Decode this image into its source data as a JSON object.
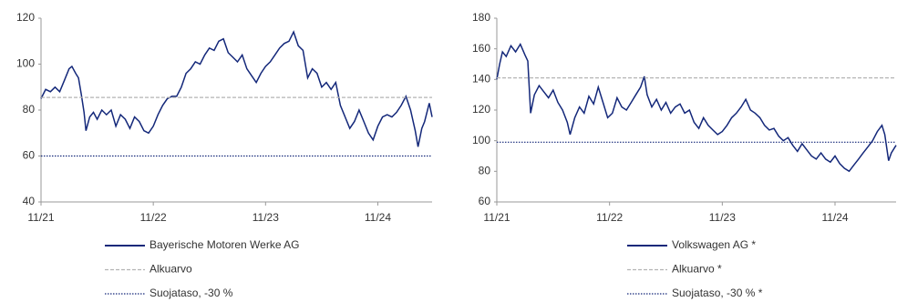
{
  "chart_data": [
    {
      "type": "line",
      "xlim": [
        0,
        41.8
      ],
      "ylim": [
        40,
        120
      ],
      "yticks": [
        40,
        60,
        80,
        100,
        120
      ],
      "xticks": [
        {
          "value": 0,
          "label": "11/21"
        },
        {
          "value": 12,
          "label": "11/22"
        },
        {
          "value": 24,
          "label": "11/23"
        },
        {
          "value": 36,
          "label": "11/24"
        }
      ],
      "series": [
        {
          "name": "Bayerische Motoren Werke AG",
          "color": "#14287a",
          "dash": "solid",
          "x": [
            0,
            0.5,
            1,
            1.5,
            2,
            2.5,
            3,
            3.3,
            3.7,
            4,
            4.3,
            4.6,
            4.8,
            5.2,
            5.6,
            6,
            6.5,
            7,
            7.5,
            8,
            8.5,
            9,
            9.5,
            10,
            10.5,
            11,
            11.5,
            12,
            12.5,
            13,
            13.5,
            14,
            14.5,
            15,
            15.5,
            16,
            16.5,
            17,
            17.5,
            18,
            18.5,
            19,
            19.5,
            20,
            20.5,
            21,
            21.5,
            22,
            22.5,
            23,
            23.5,
            24,
            24.5,
            25,
            25.5,
            26,
            26.5,
            27,
            27.5,
            28,
            28.5,
            29,
            29.5,
            30,
            30.5,
            31,
            31.5,
            32,
            32.5,
            33,
            33.5,
            34,
            34.5,
            35,
            35.5,
            36,
            36.5,
            37,
            37.5,
            38,
            38.5,
            39,
            39.5,
            40,
            40.3,
            40.7,
            41,
            41.5,
            41.8
          ],
          "values": [
            85,
            89,
            88,
            90,
            88,
            93,
            98,
            99,
            96,
            94,
            87,
            79,
            71,
            77,
            79,
            76,
            80,
            78,
            80,
            73,
            78,
            76,
            72,
            77,
            75,
            71,
            70,
            73,
            78,
            82,
            85,
            86,
            86,
            90,
            96,
            98,
            101,
            100,
            104,
            107,
            106,
            110,
            111,
            105,
            103,
            101,
            104,
            98,
            95,
            92,
            96,
            99,
            101,
            104,
            107,
            109,
            110,
            114,
            108,
            106,
            94,
            98,
            96,
            90,
            92,
            89,
            92,
            82,
            77,
            72,
            75,
            80,
            75,
            70,
            67,
            73,
            77,
            78,
            77,
            79,
            82,
            86,
            80,
            71,
            64,
            72,
            75,
            83,
            77
          ]
        },
        {
          "name": "Alkuarvo",
          "color": "#b4b4b4",
          "dash": "dashed",
          "x": [
            0,
            41.8
          ],
          "values": [
            85.5,
            85.5
          ]
        },
        {
          "name": "Suojataso, -30 %",
          "color": "#14287a",
          "dash": "dotted",
          "x": [
            0,
            41.8
          ],
          "values": [
            60,
            60
          ]
        }
      ]
    },
    {
      "type": "line",
      "xlim": [
        0,
        42.5
      ],
      "ylim": [
        60,
        180
      ],
      "yticks": [
        60,
        80,
        100,
        120,
        140,
        160,
        180
      ],
      "xticks": [
        {
          "value": 0,
          "label": "11/21"
        },
        {
          "value": 12,
          "label": "11/22"
        },
        {
          "value": 24,
          "label": "11/23"
        },
        {
          "value": 36,
          "label": "11/24"
        }
      ],
      "series": [
        {
          "name": "Volkswagen AG *",
          "color": "#14287a",
          "dash": "solid",
          "x": [
            0,
            0.3,
            0.6,
            1,
            1.5,
            2,
            2.5,
            3,
            3.3,
            3.6,
            4,
            4.5,
            5,
            5.5,
            6,
            6.5,
            7,
            7.5,
            7.8,
            8.3,
            8.8,
            9.3,
            9.8,
            10.3,
            10.8,
            11.3,
            11.8,
            12.3,
            12.8,
            13.3,
            13.8,
            14.3,
            14.8,
            15.3,
            15.7,
            16,
            16.5,
            17,
            17.5,
            18,
            18.5,
            19,
            19.5,
            20,
            20.5,
            21,
            21.5,
            22,
            22.5,
            23,
            23.5,
            24,
            24.5,
            25,
            25.5,
            26,
            26.5,
            27,
            27.5,
            28,
            28.5,
            29,
            29.5,
            30,
            30.5,
            31,
            31.5,
            32,
            32.5,
            33,
            33.5,
            34,
            34.5,
            35,
            35.5,
            36,
            36.5,
            37,
            37.5,
            38,
            38.5,
            39,
            39.5,
            40,
            40.5,
            41,
            41.3,
            41.7,
            42,
            42.5
          ],
          "values": [
            140,
            150,
            158,
            155,
            162,
            158,
            163,
            156,
            152,
            118,
            130,
            136,
            132,
            128,
            133,
            125,
            120,
            112,
            104,
            115,
            122,
            118,
            129,
            124,
            135,
            125,
            115,
            118,
            128,
            122,
            120,
            125,
            130,
            135,
            142,
            130,
            122,
            127,
            120,
            125,
            118,
            122,
            124,
            118,
            120,
            112,
            108,
            115,
            110,
            107,
            104,
            106,
            110,
            115,
            118,
            122,
            127,
            120,
            118,
            115,
            110,
            107,
            108,
            103,
            100,
            102,
            97,
            93,
            98,
            94,
            90,
            88,
            92,
            88,
            86,
            90,
            85,
            82,
            80,
            84,
            88,
            92,
            96,
            100,
            106,
            110,
            104,
            87,
            92,
            97
          ]
        },
        {
          "name": "Alkuarvo *",
          "color": "#b4b4b4",
          "dash": "dashed",
          "x": [
            0,
            42.5
          ],
          "values": [
            141,
            141
          ]
        },
        {
          "name": "Suojataso, -30 % *",
          "color": "#14287a",
          "dash": "dotted",
          "x": [
            0,
            42.5
          ],
          "values": [
            99,
            99
          ]
        }
      ]
    }
  ]
}
